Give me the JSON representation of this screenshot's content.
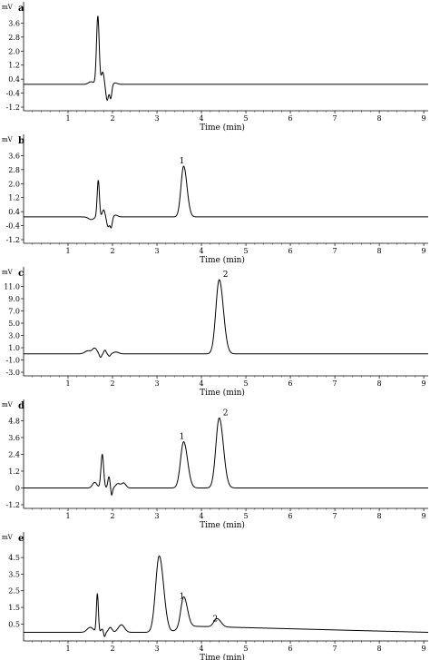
{
  "figure": {
    "panels": [
      {
        "letter": "a",
        "unit": "mV",
        "xlabel": "Time (min)",
        "x_ticks": [
          1,
          2,
          3,
          4,
          5,
          6,
          7,
          8,
          9
        ],
        "y_ticks": [
          "3.6",
          "2.8",
          "2.0",
          "1.2",
          "0.4",
          "-0.4",
          "-1.2"
        ],
        "xlim": [
          0,
          9.1
        ],
        "ylim": [
          -1.2,
          4.4
        ],
        "baseline": 0.1,
        "disturbance": [
          {
            "t": 1.52,
            "a": 0.15,
            "w": 0.06
          },
          {
            "t": 1.67,
            "a": 3.9,
            "w": 0.03
          },
          {
            "t": 1.78,
            "a": 0.7,
            "w": 0.03
          },
          {
            "t": 1.88,
            "a": -0.9,
            "w": 0.03
          },
          {
            "t": 1.96,
            "a": -0.8,
            "w": 0.025
          },
          {
            "t": 2.06,
            "a": 0.08,
            "w": 0.05
          }
        ],
        "peaks": []
      },
      {
        "letter": "b",
        "unit": "mV",
        "xlabel": "Time (min)",
        "x_ticks": [
          1,
          2,
          3,
          4,
          5,
          6,
          7,
          8,
          9
        ],
        "y_ticks": [
          "3.6",
          "2.8",
          "2.0",
          "1.2",
          "0.4",
          "-0.4",
          "-1.2"
        ],
        "xlim": [
          0,
          9.1
        ],
        "ylim": [
          -1.2,
          4.4
        ],
        "baseline": 0.1,
        "disturbance": [
          {
            "t": 1.52,
            "a": -0.15,
            "w": 0.06
          },
          {
            "t": 1.68,
            "a": 2.1,
            "w": 0.025
          },
          {
            "t": 1.8,
            "a": 0.4,
            "w": 0.03
          },
          {
            "t": 1.9,
            "a": -0.55,
            "w": 0.03
          },
          {
            "t": 1.97,
            "a": -0.6,
            "w": 0.025
          },
          {
            "t": 2.07,
            "a": 0.1,
            "w": 0.05
          }
        ],
        "peaks": [
          {
            "label": "1",
            "t": 3.6,
            "height": 2.9,
            "w": 0.06
          }
        ]
      },
      {
        "letter": "c",
        "unit": "mV",
        "xlabel": "Time (min)",
        "x_ticks": [
          1,
          2,
          3,
          4,
          5,
          6,
          7,
          8,
          9
        ],
        "y_ticks": [
          "11.0",
          "9.0",
          "7.0",
          "5.0",
          "3.0",
          "1.0",
          "-1.0",
          "-3.0"
        ],
        "xlim": [
          0,
          9.1
        ],
        "ylim": [
          -3.0,
          13.0
        ],
        "baseline": 0.0,
        "disturbance": [
          {
            "t": 1.45,
            "a": 0.5,
            "w": 0.07
          },
          {
            "t": 1.6,
            "a": 0.9,
            "w": 0.05
          },
          {
            "t": 1.73,
            "a": -0.6,
            "w": 0.025
          },
          {
            "t": 1.83,
            "a": 0.6,
            "w": 0.025
          },
          {
            "t": 1.93,
            "a": -0.4,
            "w": 0.025
          },
          {
            "t": 2.08,
            "a": 0.3,
            "w": 0.06
          }
        ],
        "peaks": [
          {
            "label": "2",
            "t": 4.4,
            "height": 12.1,
            "w": 0.075
          }
        ]
      },
      {
        "letter": "d",
        "unit": "mV",
        "xlabel": "Time (min)",
        "x_ticks": [
          1,
          2,
          3,
          4,
          5,
          6,
          7,
          8,
          9
        ],
        "y_ticks": [
          "4.8",
          "3.6",
          "2.4",
          "1.2",
          "0",
          "-1.2"
        ],
        "xlim": [
          0,
          9.1
        ],
        "ylim": [
          -1.2,
          5.8
        ],
        "baseline": 0.0,
        "disturbance": [
          {
            "t": 1.6,
            "a": 0.4,
            "w": 0.05
          },
          {
            "t": 1.77,
            "a": 2.4,
            "w": 0.03
          },
          {
            "t": 1.92,
            "a": 0.8,
            "w": 0.025
          },
          {
            "t": 1.98,
            "a": -0.55,
            "w": 0.02
          },
          {
            "t": 2.12,
            "a": 0.3,
            "w": 0.05
          },
          {
            "t": 2.25,
            "a": 0.35,
            "w": 0.05
          }
        ],
        "peaks": [
          {
            "label": "1",
            "t": 3.6,
            "height": 3.3,
            "w": 0.07
          },
          {
            "label": "2",
            "t": 4.4,
            "height": 5.0,
            "w": 0.075
          }
        ]
      },
      {
        "letter": "e",
        "unit": "mV",
        "xlabel": "Time (min)",
        "x_ticks": [
          1,
          2,
          3,
          4,
          5,
          6,
          7,
          8,
          9
        ],
        "y_ticks": [
          "4.5",
          "3.5",
          "2.5",
          "1.5",
          "0.5"
        ],
        "xlim": [
          0,
          9.1
        ],
        "ylim": [
          -0.3,
          5.6
        ],
        "baseline": 0.0,
        "disturbance": [
          {
            "t": 1.5,
            "a": 0.3,
            "w": 0.07
          },
          {
            "t": 1.66,
            "a": 2.3,
            "w": 0.022
          },
          {
            "t": 1.77,
            "a": 0.2,
            "w": 0.03
          },
          {
            "t": 1.82,
            "a": -0.3,
            "w": 0.02
          },
          {
            "t": 1.95,
            "a": 0.3,
            "w": 0.04
          },
          {
            "t": 2.2,
            "a": 0.45,
            "w": 0.07
          }
        ],
        "peaks": [
          {
            "label": "",
            "t": 3.05,
            "height": 4.6,
            "w": 0.08
          },
          {
            "label": "1",
            "t": 3.6,
            "height": 1.85,
            "w": 0.065
          },
          {
            "label": "2",
            "t": 4.35,
            "height": 0.5,
            "w": 0.07
          }
        ],
        "hump": {
          "from": 3.3,
          "to": 9.1,
          "level": 0.4,
          "end_level": 0.0
        }
      }
    ]
  }
}
